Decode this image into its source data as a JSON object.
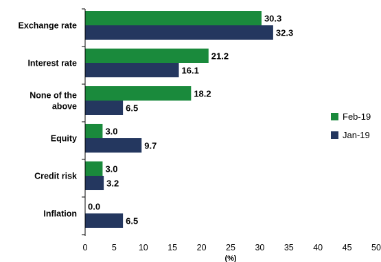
{
  "chart_data": {
    "type": "bar",
    "orientation": "horizontal",
    "categories": [
      "Exchange rate",
      "Interest rate",
      "None of the above",
      "Equity",
      "Credit risk",
      "Inflation"
    ],
    "category_lines": [
      [
        "Exchange rate"
      ],
      [
        "Interest rate"
      ],
      [
        "None of the",
        "above"
      ],
      [
        "Equity"
      ],
      [
        "Credit risk"
      ],
      [
        "Inflation"
      ]
    ],
    "series": [
      {
        "name": "Feb-19",
        "color": "#1a8a3c",
        "values": [
          30.3,
          21.2,
          18.2,
          3.0,
          3.0,
          0.0
        ],
        "labels": [
          "30.3",
          "21.2",
          "18.2",
          "3.0",
          "3.0",
          "0.0"
        ]
      },
      {
        "name": "Jan-19",
        "color": "#24375f",
        "values": [
          32.3,
          16.1,
          6.5,
          9.7,
          3.2,
          6.5
        ],
        "labels": [
          "32.3",
          "16.1",
          "6.5",
          "9.7",
          "3.2",
          "6.5"
        ]
      }
    ],
    "xlim": [
      0,
      50
    ],
    "xticks": [
      "0",
      "5",
      "10",
      "15",
      "20",
      "25",
      "30",
      "35",
      "40",
      "45",
      "50"
    ],
    "xlabel": "(%)",
    "legend": "right",
    "grid": false
  }
}
